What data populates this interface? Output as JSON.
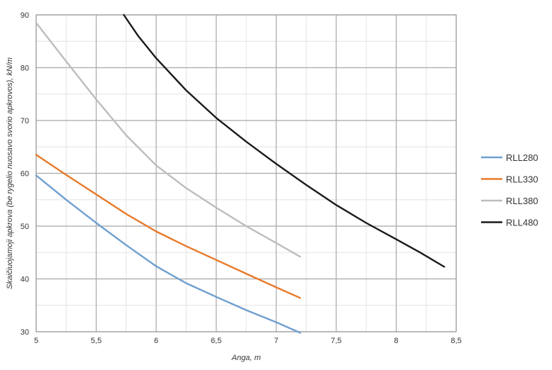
{
  "chart_data": {
    "type": "line",
    "title": "",
    "xlabel": "Anga, m",
    "ylabel": "Skaičiuojamoji apkrova (be rygelio nuosavo svorio apkrovos), kN/m",
    "xlim": [
      5,
      8.5
    ],
    "ylim": [
      30,
      90
    ],
    "x_ticks": [
      5,
      5.5,
      6,
      6.5,
      7,
      7.5,
      8,
      8.5
    ],
    "x_tick_labels": [
      "5",
      "5,5",
      "6",
      "6,5",
      "7",
      "7,5",
      "8",
      "8,5"
    ],
    "y_ticks": [
      30,
      40,
      50,
      60,
      70,
      80,
      90
    ],
    "y_tick_labels": [
      "30",
      "40",
      "50",
      "60",
      "70",
      "80",
      "90"
    ],
    "grid": true,
    "legend_position": "right",
    "series": [
      {
        "name": "RLL280",
        "color": "#6f9fd0",
        "x": [
          5.0,
          5.25,
          5.5,
          5.75,
          6.0,
          6.25,
          6.5,
          6.75,
          7.0,
          7.2
        ],
        "y": [
          59.6,
          55.0,
          50.6,
          46.4,
          42.4,
          39.2,
          36.6,
          34.1,
          31.8,
          29.8
        ]
      },
      {
        "name": "RLL330",
        "color": "#e87a2a",
        "x": [
          5.0,
          5.25,
          5.5,
          5.75,
          6.0,
          6.25,
          6.5,
          6.75,
          7.0,
          7.2
        ],
        "y": [
          63.5,
          59.7,
          56.0,
          52.3,
          49.0,
          46.2,
          43.6,
          41.0,
          38.4,
          36.4
        ]
      },
      {
        "name": "RLL380",
        "color": "#bdbdbd",
        "x": [
          5.0,
          5.25,
          5.5,
          5.75,
          6.0,
          6.25,
          6.5,
          6.75,
          7.0,
          7.2
        ],
        "y": [
          88.5,
          81.2,
          74.0,
          67.2,
          61.5,
          57.2,
          53.5,
          50.0,
          46.8,
          44.2
        ]
      },
      {
        "name": "RLL480",
        "color": "#1a1a1a",
        "x": [
          5.73,
          5.85,
          6.0,
          6.25,
          6.5,
          6.75,
          7.0,
          7.25,
          7.5,
          7.75,
          8.0,
          8.2,
          8.4
        ],
        "y": [
          90.0,
          86.0,
          81.8,
          75.7,
          70.5,
          66.0,
          61.8,
          57.8,
          54.0,
          50.6,
          47.5,
          45.0,
          42.3
        ]
      }
    ]
  }
}
